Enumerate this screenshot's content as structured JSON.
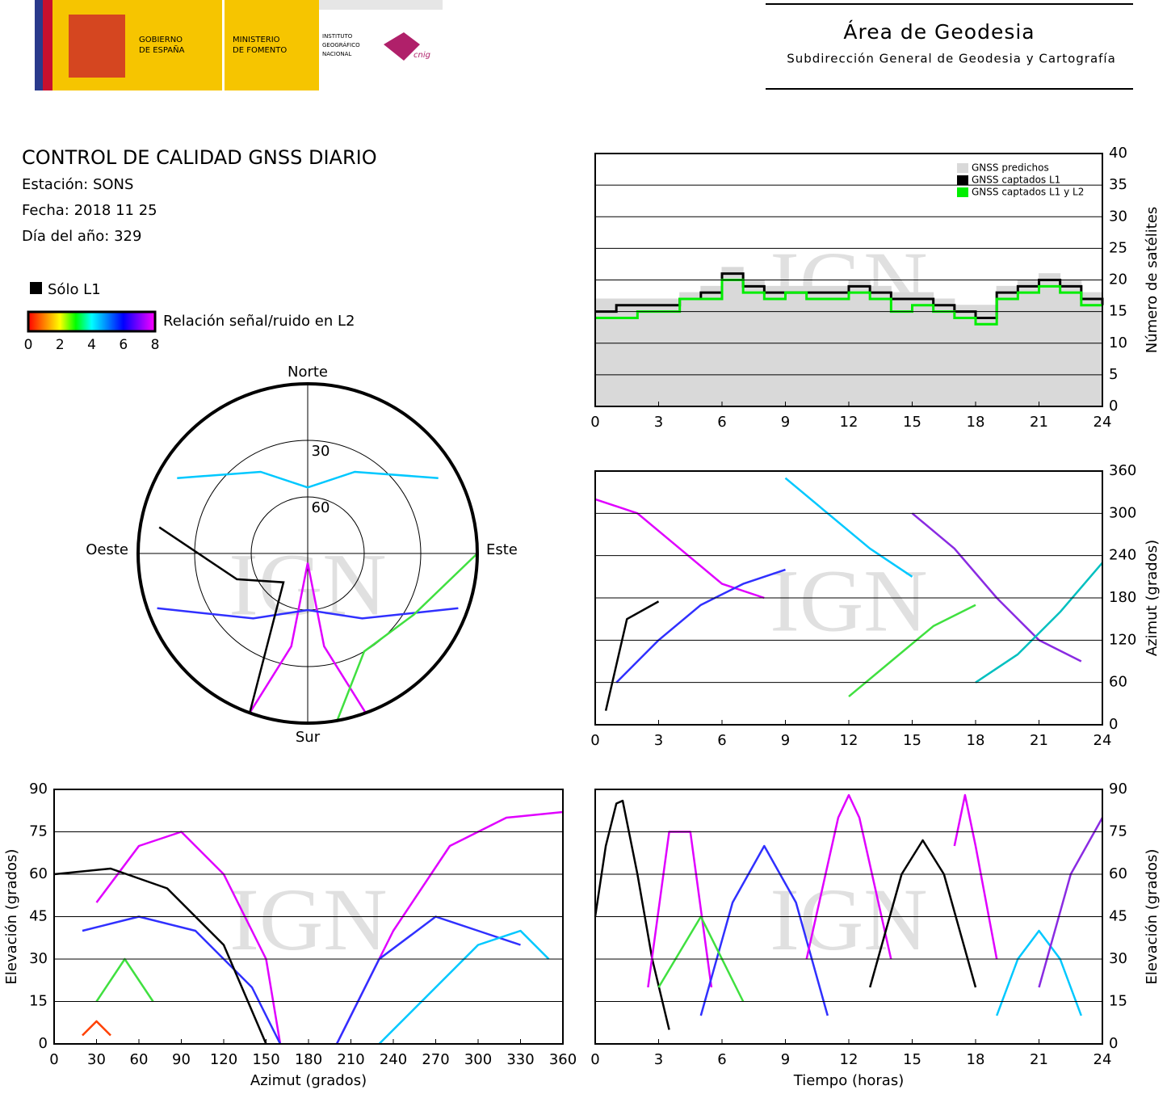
{
  "header": {
    "gobierno": [
      "GOBIERNO",
      "DE ESPAÑA"
    ],
    "ministerio": [
      "MINISTERIO",
      "DE FOMENTO"
    ],
    "instituto": [
      "INSTITUTO",
      "GEOGRÁFICO",
      "NACIONAL"
    ],
    "cnig": "cnig",
    "title": "Área de Geodesia",
    "subtitle": "Subdirección General de Geodesia y Cartografía"
  },
  "report": {
    "title": "CONTROL DE CALIDAD GNSS DIARIO",
    "station": "Estación: SONS",
    "date": "Fecha: 2018 11 25",
    "doy": "Día del año: 329"
  },
  "key": {
    "l1_label": "Sólo L1",
    "l1_color": "#000000",
    "colorbar_title": "Relación señal/ruido en L2",
    "colors": [
      "#ff0000",
      "#ff8000",
      "#ffff00",
      "#00ff00",
      "#00ffff",
      "#0080ff",
      "#0000ff",
      "#8000ff",
      "#ff00ff"
    ],
    "lim": [
      0,
      8
    ],
    "ticks": [
      0,
      2,
      4,
      6,
      8
    ]
  },
  "watermark": "IGN",
  "chart_data": [
    {
      "type": "step",
      "ylabel": "Número de satélites",
      "grid": true,
      "xlim": [
        0,
        24
      ],
      "xticks": [
        0,
        3,
        6,
        9,
        12,
        15,
        18,
        21,
        24
      ],
      "ylim": [
        0,
        40
      ],
      "yticks": [
        0,
        5,
        10,
        15,
        20,
        25,
        30,
        35,
        40
      ],
      "x": [
        0,
        1,
        2,
        3,
        4,
        5,
        6,
        7,
        8,
        9,
        10,
        11,
        12,
        13,
        14,
        15,
        16,
        17,
        18,
        19,
        20,
        21,
        22,
        23,
        24
      ],
      "series": [
        {
          "name": "GNSS predichos",
          "color": "#d9d9d9",
          "filled": true,
          "values": [
            17,
            17,
            17,
            17,
            18,
            19,
            22,
            20,
            19,
            19,
            19,
            19,
            20,
            19,
            18,
            18,
            17,
            16,
            16,
            19,
            20,
            21,
            20,
            18,
            17
          ]
        },
        {
          "name": "GNSS captados L1",
          "color": "#000000",
          "values": [
            15,
            16,
            16,
            16,
            17,
            18,
            21,
            19,
            18,
            18,
            18,
            18,
            19,
            18,
            17,
            17,
            16,
            15,
            14,
            18,
            19,
            20,
            19,
            17,
            16
          ]
        },
        {
          "name": "GNSS captados L1 y L2",
          "color": "#00ee00",
          "values": [
            14,
            14,
            15,
            15,
            17,
            17,
            20,
            18,
            17,
            18,
            17,
            17,
            18,
            17,
            15,
            16,
            15,
            14,
            13,
            17,
            18,
            19,
            18,
            16,
            16
          ]
        }
      ]
    },
    {
      "type": "line",
      "ylabel": "Azimut (grados)",
      "grid": true,
      "xlim": [
        0,
        24
      ],
      "xticks": [
        0,
        3,
        6,
        9,
        12,
        15,
        18,
        21,
        24
      ],
      "ylim": [
        0,
        360
      ],
      "yticks": [
        0,
        60,
        120,
        180,
        240,
        300,
        360
      ],
      "series": [
        {
          "color": "#e000ff",
          "x": [
            0,
            2,
            4,
            6,
            8
          ],
          "values": [
            320,
            300,
            250,
            200,
            180
          ]
        },
        {
          "color": "#3030ff",
          "x": [
            1,
            3,
            5,
            7,
            9
          ],
          "values": [
            60,
            120,
            170,
            200,
            220
          ]
        },
        {
          "color": "#00c8ff",
          "x": [
            9,
            11,
            13,
            15
          ],
          "values": [
            350,
            300,
            250,
            210
          ]
        },
        {
          "color": "#40e040",
          "x": [
            12,
            14,
            16,
            18
          ],
          "values": [
            40,
            90,
            140,
            170
          ]
        },
        {
          "color": "#8a2be2",
          "x": [
            15,
            17,
            19,
            21,
            23
          ],
          "values": [
            300,
            250,
            180,
            120,
            90
          ]
        },
        {
          "color": "#000000",
          "x": [
            0.5,
            1.5,
            3
          ],
          "values": [
            20,
            150,
            175
          ]
        },
        {
          "color": "#00c0c0",
          "x": [
            18,
            20,
            22,
            24
          ],
          "values": [
            60,
            100,
            160,
            230
          ]
        }
      ]
    },
    {
      "type": "line",
      "xlabel": "Azimut (grados)",
      "ylabel": "Elevación (grados)",
      "grid": true,
      "xlim": [
        0,
        360
      ],
      "xticks": [
        0,
        30,
        60,
        90,
        120,
        150,
        180,
        210,
        240,
        270,
        300,
        330,
        360
      ],
      "ylim": [
        0,
        90
      ],
      "yticks": [
        0,
        15,
        30,
        45,
        60,
        75,
        90
      ],
      "series": [
        {
          "color": "#e000ff",
          "x": [
            30,
            60,
            90,
            120,
            150,
            160
          ],
          "values": [
            50,
            70,
            75,
            60,
            30,
            0
          ]
        },
        {
          "color": "#e000ff",
          "x": [
            200,
            240,
            280,
            320,
            360
          ],
          "values": [
            0,
            40,
            70,
            80,
            82
          ]
        },
        {
          "color": "#3030ff",
          "x": [
            20,
            60,
            100,
            140,
            160
          ],
          "values": [
            40,
            45,
            40,
            20,
            0
          ]
        },
        {
          "color": "#3030ff",
          "x": [
            200,
            230,
            270,
            300,
            330
          ],
          "values": [
            0,
            30,
            45,
            40,
            35
          ]
        },
        {
          "color": "#40e040",
          "x": [
            30,
            50,
            70
          ],
          "values": [
            15,
            30,
            15
          ]
        },
        {
          "color": "#00c8ff",
          "x": [
            230,
            270,
            300,
            330,
            350
          ],
          "values": [
            0,
            20,
            35,
            40,
            30
          ]
        },
        {
          "color": "#000000",
          "x": [
            0,
            40,
            80,
            120,
            150
          ],
          "values": [
            60,
            62,
            55,
            35,
            0
          ]
        },
        {
          "color": "#ff4000",
          "x": [
            20,
            30,
            40
          ],
          "values": [
            3,
            8,
            3
          ]
        }
      ]
    },
    {
      "type": "line",
      "xlabel": "Tiempo (horas)",
      "ylabel": "Elevación (grados)",
      "grid": true,
      "xlim": [
        0,
        24
      ],
      "xticks": [
        0,
        3,
        6,
        9,
        12,
        15,
        18,
        21,
        24
      ],
      "ylim": [
        0,
        90
      ],
      "yticks": [
        0,
        15,
        30,
        45,
        60,
        75,
        90
      ],
      "series": [
        {
          "color": "#000000",
          "x": [
            0,
            0.5,
            1,
            1.3,
            2,
            2.7,
            3.5
          ],
          "values": [
            45,
            70,
            85,
            86,
            60,
            30,
            5
          ]
        },
        {
          "color": "#e000ff",
          "x": [
            2.5,
            3.5,
            4.5,
            5.5
          ],
          "values": [
            20,
            75,
            75,
            20
          ]
        },
        {
          "color": "#3030ff",
          "x": [
            5,
            6.5,
            8,
            9.5,
            11
          ],
          "values": [
            10,
            50,
            70,
            50,
            10
          ]
        },
        {
          "color": "#e000ff",
          "x": [
            10,
            11.5,
            12,
            12.5,
            14
          ],
          "values": [
            30,
            80,
            88,
            80,
            30
          ]
        },
        {
          "color": "#000000",
          "x": [
            13,
            14.5,
            15.5,
            16.5,
            18
          ],
          "values": [
            20,
            60,
            72,
            60,
            20
          ]
        },
        {
          "color": "#e000ff",
          "x": [
            17,
            17.5,
            18,
            19
          ],
          "values": [
            70,
            88,
            70,
            30
          ]
        },
        {
          "color": "#00c8ff",
          "x": [
            19,
            20,
            21,
            22,
            23
          ],
          "values": [
            10,
            30,
            40,
            30,
            10
          ]
        },
        {
          "color": "#40e040",
          "x": [
            3,
            5,
            7
          ],
          "values": [
            20,
            45,
            15
          ]
        },
        {
          "color": "#8a2be2",
          "x": [
            21,
            22.5,
            24
          ],
          "values": [
            20,
            60,
            80
          ]
        }
      ]
    },
    {
      "type": "polar",
      "north": "Norte",
      "south": "Sur",
      "east": "Este",
      "west": "Oeste",
      "rticks": [
        30,
        60
      ],
      "series": [
        {
          "color": "#00c8ff",
          "azimuth": [
            300,
            330,
            0,
            30,
            60
          ],
          "elevation": [
            10,
            40,
            55,
            40,
            10
          ]
        },
        {
          "color": "#e000ff",
          "azimuth": [
            200,
            190,
            180,
            170,
            160
          ],
          "elevation": [
            0,
            40,
            85,
            40,
            0
          ]
        },
        {
          "color": "#3030ff",
          "azimuth": [
            250,
            220,
            180,
            140,
            110
          ],
          "elevation": [
            5,
            45,
            60,
            45,
            5
          ]
        },
        {
          "color": "#40e040",
          "azimuth": [
            90,
            120,
            150,
            170
          ],
          "elevation": [
            0,
            25,
            30,
            0
          ]
        },
        {
          "color": "#000000",
          "azimuth": [
            280,
            250,
            220,
            200
          ],
          "elevation": [
            10,
            50,
            70,
            0
          ]
        }
      ]
    }
  ]
}
